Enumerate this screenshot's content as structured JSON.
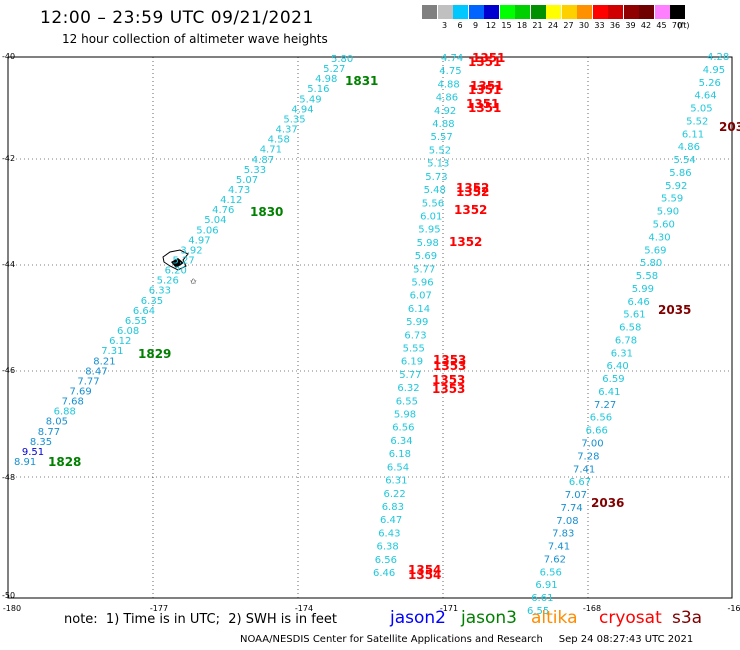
{
  "header": {
    "title": "12:00 – 23:59 UTC 09/21/2021",
    "subtitle": "12 hour collection of altimeter wave heights"
  },
  "colorbar": {
    "unit": "(ft)",
    "bins": [
      {
        "label": "",
        "color": "#808080"
      },
      {
        "label": "3",
        "color": "#c0c0c0"
      },
      {
        "label": "6",
        "color": "#00c8ff"
      },
      {
        "label": "9",
        "color": "#0064ff"
      },
      {
        "label": "12",
        "color": "#0000d0"
      },
      {
        "label": "15",
        "color": "#00ff00"
      },
      {
        "label": "18",
        "color": "#00d000"
      },
      {
        "label": "21",
        "color": "#009000"
      },
      {
        "label": "24",
        "color": "#ffff00"
      },
      {
        "label": "27",
        "color": "#ffd000"
      },
      {
        "label": "30",
        "color": "#ff9000"
      },
      {
        "label": "33",
        "color": "#ff0000"
      },
      {
        "label": "36",
        "color": "#d00000"
      },
      {
        "label": "39",
        "color": "#900000"
      },
      {
        "label": "42",
        "color": "#700000"
      },
      {
        "label": "45",
        "color": "#ff80ff"
      },
      {
        "label": "70",
        "color": "#000000"
      }
    ]
  },
  "map": {
    "lon_ticks": [
      "-180",
      "-177",
      "-174",
      "-171",
      "-168",
      "-16"
    ],
    "lat_ticks": [
      "-40",
      "-42",
      "-44",
      "-46",
      "-48",
      "-50"
    ],
    "colors": {
      "jason2": "#0000ff",
      "jason3": "#008000",
      "altika": "#ff8c00",
      "cryosat": "#ff0000",
      "s3a": "#800000",
      "obs": "#20c8dc"
    },
    "tracks": [
      {
        "time": "1831",
        "color": "#008000"
      },
      {
        "time": "1830",
        "color": "#008000"
      },
      {
        "time": "1829",
        "color": "#008000"
      },
      {
        "time": "1828",
        "color": "#008000"
      },
      {
        "time": "1351",
        "color": "#ff0000"
      },
      {
        "time": "1351",
        "color": "#ff0000"
      },
      {
        "time": "1351",
        "color": "#ff0000"
      },
      {
        "time": "1351",
        "color": "#ff0000"
      },
      {
        "time": "1351",
        "color": "#ff0000"
      },
      {
        "time": "1351",
        "color": "#ff0000"
      },
      {
        "time": "1352",
        "color": "#ff0000"
      },
      {
        "time": "1352",
        "color": "#ff0000"
      },
      {
        "time": "1352",
        "color": "#ff0000"
      },
      {
        "time": "1352",
        "color": "#ff0000"
      },
      {
        "time": "1353",
        "color": "#ff0000"
      },
      {
        "time": "1353",
        "color": "#ff0000"
      },
      {
        "time": "1353",
        "color": "#ff0000"
      },
      {
        "time": "1353",
        "color": "#ff0000"
      },
      {
        "time": "1354",
        "color": "#ff0000"
      },
      {
        "time": "1354",
        "color": "#ff0000"
      },
      {
        "time": "203",
        "color": "#800000"
      },
      {
        "time": "2035",
        "color": "#800000"
      },
      {
        "time": "2036",
        "color": "#800000"
      }
    ],
    "obs_track1": [
      "5.80",
      "5.27",
      "4.98",
      "5.16",
      "5.49",
      "4.94",
      "5.35",
      "4.37",
      "4.58",
      "4.71",
      "4.87",
      "5.33",
      "5.07",
      "4.73",
      "4.12",
      "4.76",
      "5.04",
      "5.06",
      "4.97",
      "3.92",
      "5.27",
      "6.20",
      "5.26",
      "6.33",
      "6.35",
      "6.64",
      "6.55",
      "6.08",
      "6.12",
      "7.31",
      "8.21",
      "8.47",
      "7.77",
      "7.69",
      "7.68",
      "6.88",
      "8.05",
      "8.77",
      "8.35",
      "9.51",
      "8.91"
    ],
    "obs_track2": [
      "4.74",
      "4.75",
      "4.88",
      "4.86",
      "4.92",
      "4.88",
      "5.57",
      "5.52",
      "5.13",
      "5.73",
      "5.48",
      "5.56",
      "6.01",
      "5.95",
      "5.98",
      "5.69",
      "5.77",
      "5.96",
      "6.07",
      "6.14",
      "5.99",
      "6.73",
      "5.55",
      "6.19",
      "5.77",
      "6.32",
      "6.55",
      "5.98",
      "6.56",
      "6.34",
      "6.18",
      "6.54",
      "6.31",
      "6.22",
      "6.83",
      "6.47",
      "6.43",
      "6.38",
      "6.56",
      "6.46"
    ],
    "obs_track3": [
      "4.28",
      "4.95",
      "5.26",
      "4.64",
      "5.05",
      "5.52",
      "6.11",
      "4.86",
      "5.54",
      "5.86",
      "5.92",
      "5.59",
      "5.90",
      "5.60",
      "4.30",
      "5.69",
      "5.80",
      "5.58",
      "5.99",
      "6.46",
      "5.61",
      "6.58",
      "6.78",
      "6.31",
      "6.40",
      "6.59",
      "6.41",
      "7.27",
      "6.56",
      "6.66",
      "7.00",
      "7.28",
      "7.41",
      "6.67",
      "7.07",
      "7.74",
      "7.08",
      "7.83",
      "7.41",
      "7.62",
      "6.56",
      "6.91",
      "6.61",
      "6.55"
    ]
  },
  "footer": {
    "note": "note:  1) Time is in UTC;  2) SWH is in feet",
    "satellites": [
      {
        "name": "jason2",
        "color": "#0000ff"
      },
      {
        "name": "jason3",
        "color": "#008000"
      },
      {
        "name": "altika",
        "color": "#ff8c00"
      },
      {
        "name": "cryosat",
        "color": "#ff0000"
      },
      {
        "name": "s3a",
        "color": "#800000"
      }
    ],
    "credit": "NOAA/NESDIS Center for Satellite Applications and Research     Sep 24 08:27:43 UTC 2021"
  }
}
